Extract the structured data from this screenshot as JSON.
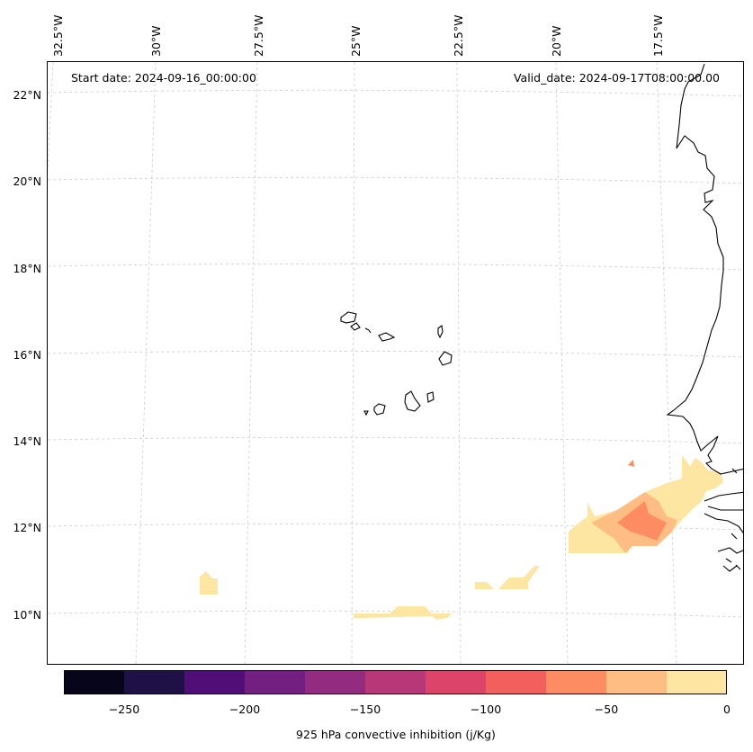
{
  "map": {
    "start_date": "Start date: 2024-09-16_00:00:00",
    "valid_date": "Valid_date: 2024-09-17T08:00:00.00",
    "lon_labels": [
      "32.5°W",
      "30°W",
      "27.5°W",
      "25°W",
      "22.5°W",
      "20°W",
      "17.5°W"
    ],
    "lat_labels": [
      "22°N",
      "20°N",
      "18°N",
      "16°N",
      "14°N",
      "12°N",
      "10°N"
    ],
    "gridlines": true,
    "features": [
      "Cape Verde islands",
      "West African coastline"
    ]
  },
  "colorbar": {
    "label": "925 hPa convective inhibition (j/Kg)",
    "ticks": [
      "−250",
      "−200",
      "−150",
      "−100",
      "−50",
      "0"
    ],
    "levels": [
      -275,
      -250,
      -225,
      -200,
      -175,
      -150,
      -125,
      -100,
      -75,
      -50,
      -25,
      0
    ],
    "colors": [
      "#07051a",
      "#1f1045",
      "#4f0f77",
      "#721f81",
      "#932b80",
      "#b73779",
      "#dc4469",
      "#f1605d",
      "#fd8c63",
      "#febd82",
      "#fde6a2"
    ]
  }
}
